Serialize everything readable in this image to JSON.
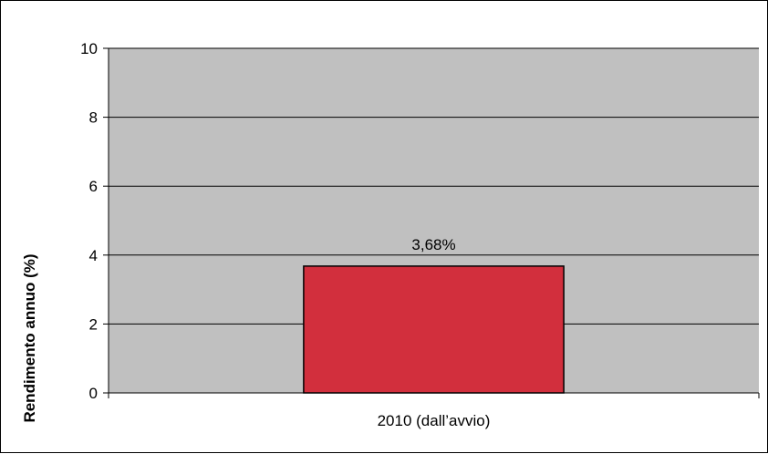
{
  "chart_data": {
    "type": "bar",
    "categories": [
      "2010 (dall’avvio)"
    ],
    "series": [
      {
        "values": [
          3.68
        ],
        "data_labels": [
          "3,68%"
        ]
      }
    ],
    "xlabel": "",
    "ylabel": "Rendimento annuo (%)",
    "ylim": [
      0,
      10
    ],
    "yticks": [
      0,
      2,
      4,
      6,
      8,
      10
    ],
    "ytick_labels": [
      "0",
      "2",
      "4",
      "6",
      "8",
      "10"
    ],
    "grid": true,
    "legend": "none",
    "colors": {
      "plot_background": "#c0c0c0",
      "bar_fill": "#d22f3d",
      "bar_edge": "#000000",
      "gridline": "#000000"
    }
  }
}
